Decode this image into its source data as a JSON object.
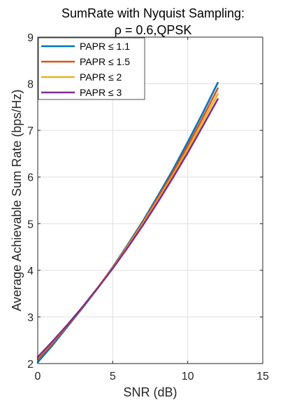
{
  "chart_data": {
    "type": "line",
    "title": "SumRate with Nyquist Sampling:",
    "subtitle": "ρ = 0.6,QPSK",
    "xlabel": "SNR (dB)",
    "ylabel": "Average Achievable Sum Rate (bps/Hz)",
    "xlim": [
      0,
      15
    ],
    "ylim": [
      2,
      9
    ],
    "xticks": [
      0,
      5,
      10,
      15
    ],
    "yticks": [
      2,
      3,
      4,
      5,
      6,
      7,
      8,
      9
    ],
    "grid": true,
    "legend_position": "top-left",
    "x": [
      0,
      1,
      2,
      3,
      4,
      5,
      6,
      7,
      8,
      9,
      10,
      11,
      12
    ],
    "series": [
      {
        "name": "PAPR ≤ 1.1",
        "color": "#0072BD",
        "values": [
          2.03,
          2.4,
          2.8,
          3.2,
          3.62,
          4.07,
          4.55,
          5.05,
          5.59,
          6.15,
          6.75,
          7.37,
          8.02
        ]
      },
      {
        "name": "PAPR ≤ 1.5",
        "color": "#D95319",
        "values": [
          2.09,
          2.44,
          2.82,
          3.21,
          3.63,
          4.06,
          4.53,
          5.02,
          5.55,
          6.09,
          6.67,
          7.27,
          7.9
        ]
      },
      {
        "name": "PAPR ≤ 2",
        "color": "#EDB120",
        "values": [
          2.13,
          2.47,
          2.84,
          3.22,
          3.63,
          4.05,
          4.51,
          4.99,
          5.5,
          6.03,
          6.59,
          7.18,
          7.78
        ]
      },
      {
        "name": "PAPR ≤ 3",
        "color": "#7E2F8E",
        "values": [
          2.14,
          2.48,
          2.84,
          3.22,
          3.62,
          4.04,
          4.49,
          4.96,
          5.46,
          5.98,
          6.52,
          7.09,
          7.67
        ]
      }
    ]
  }
}
